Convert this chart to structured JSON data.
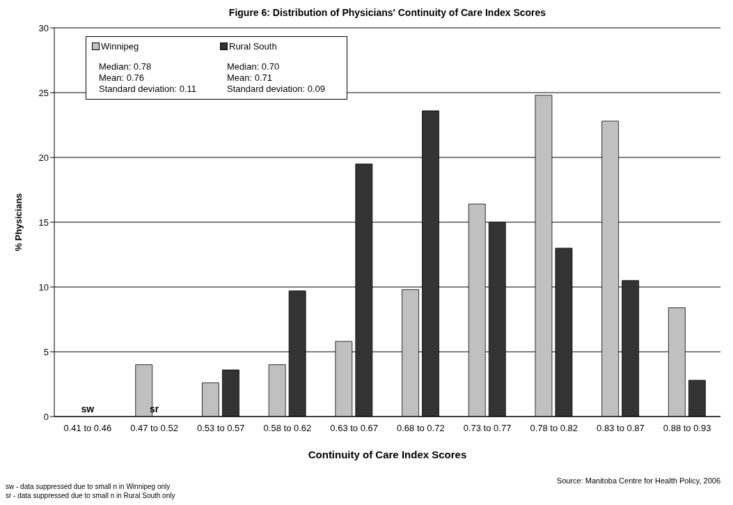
{
  "chart_data": {
    "type": "bar",
    "title": "Figure 6:  Distribution of Physicians' Continuity of Care Index Scores",
    "xlabel": "Continuity of Care Index Scores",
    "ylabel": "% Physicians",
    "categories": [
      "0.41 to 0.46",
      "0.47 to 0.52",
      "0.53 to 0.57",
      "0.58 to 0.62",
      "0.63 to 0.67",
      "0.68 to 0.72",
      "0.73 to 0.77",
      "0.78 to 0.82",
      "0.83 to 0.87",
      "0.88 to 0.93"
    ],
    "series": [
      {
        "name": "Winnipeg",
        "color": "#c0c0c0",
        "values": [
          null,
          4.0,
          2.6,
          4.0,
          5.8,
          9.8,
          16.4,
          24.8,
          22.8,
          8.4
        ]
      },
      {
        "name": "Rural South",
        "color": "#333333",
        "values": [
          0,
          null,
          3.6,
          9.7,
          19.5,
          23.6,
          15.0,
          13.0,
          10.5,
          2.8
        ]
      }
    ],
    "ylim": [
      0,
      30
    ],
    "yticks": [
      0,
      5,
      10,
      15,
      20,
      25,
      30
    ],
    "grid": "y",
    "legend": "top left",
    "annotations": [
      {
        "text": "sw",
        "x": "0.41 to 0.46",
        "y": 0
      },
      {
        "text": "sr",
        "x": "0.47 to 0.52",
        "y": 0
      },
      "Median: 0.78",
      "Mean: 0.76",
      "Standard deviation: 0.11",
      "Median: 0.70",
      "Mean: 0.71",
      "Standard deviation: 0.09",
      "sw - data suppressed due to small n in Winnipeg only",
      "sr -  data suppressed due to small n in Rural South only",
      "Source: Manitoba Centre for Health Policy, 2006"
    ]
  }
}
